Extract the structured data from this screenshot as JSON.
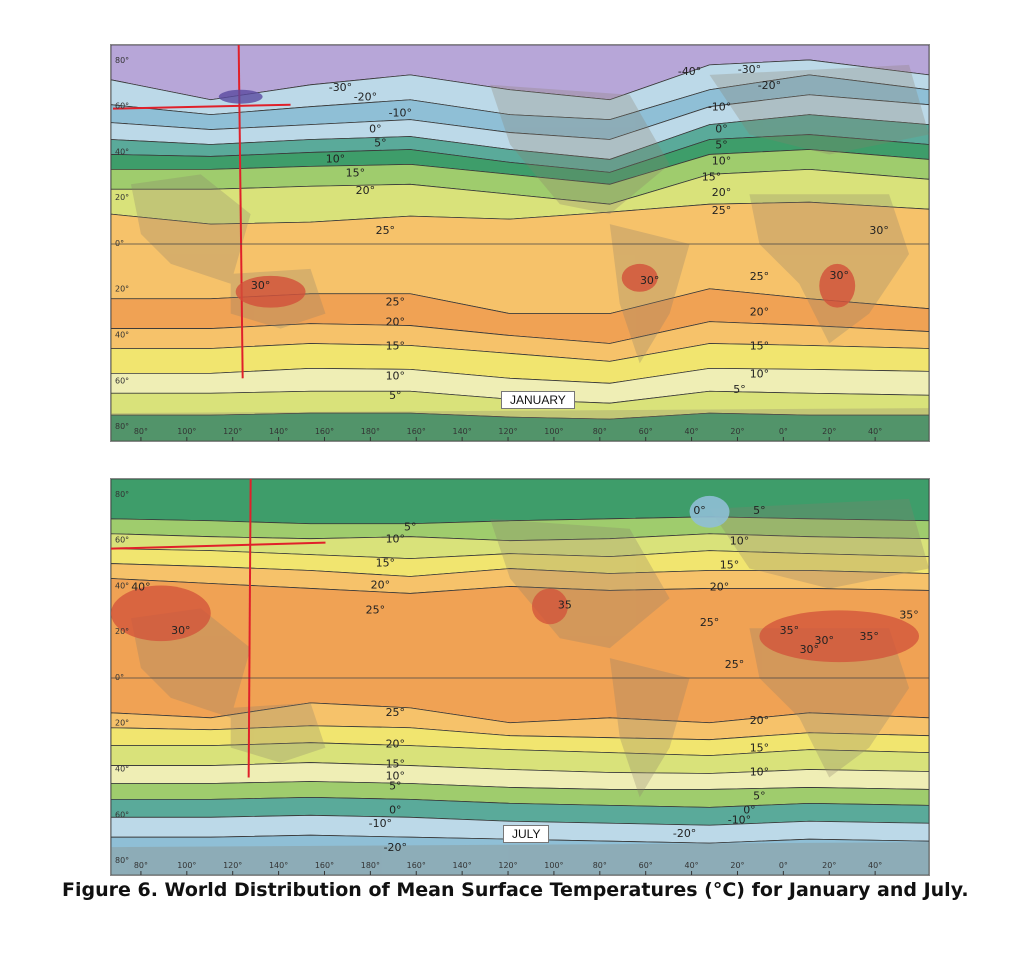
{
  "caption": "Figure 6. World Distribution of Mean Surface Temperatures (°C) for January and July.",
  "colors": {
    "purple": "#b7a6d8",
    "light_blue": "#bcd9e8",
    "blue": "#8fbfd6",
    "teal": "#5aaa9a",
    "green": "#3e9d6a",
    "light_green": "#9fcc6d",
    "yellow_green": "#d9e27a",
    "pale": "#efeeb5",
    "yellow": "#f1e56f",
    "light_orange": "#f6c26a",
    "orange": "#f0a254",
    "dark_orange": "#e88a45",
    "red": "#d2503a",
    "land_shade": "#8a7d6a",
    "annotation_red": "#e0202a"
  },
  "longitude_ticks": [
    "80°",
    "100°",
    "120°",
    "140°",
    "160°",
    "180°",
    "160°",
    "140°",
    "120°",
    "100°",
    "80°",
    "60°",
    "40°",
    "20°",
    "0°",
    "20°",
    "40°"
  ],
  "latitude_ticks": [
    "80°",
    "60°",
    "40°",
    "20°",
    "0°",
    "20°",
    "40°",
    "60°",
    "80°"
  ],
  "maps": [
    {
      "id": "january",
      "label": "JANUARY",
      "lat_labels": [
        "80°",
        "60°",
        "40°",
        "20°",
        "0°",
        "20°",
        "40°",
        "60°",
        "80°"
      ],
      "isotherm_labels": [
        "-30°",
        "-20°",
        "-10°",
        "0°",
        "5°",
        "10°",
        "15°",
        "20°",
        "25°",
        "30°",
        "-40°",
        "-30°",
        "-20°",
        "-10°",
        "0°",
        "5°",
        "10°",
        "15°",
        "20°",
        "25°",
        "30°",
        "30°",
        "30°",
        "25°",
        "20°",
        "15°",
        "10°",
        "5°",
        "25°",
        "20°",
        "15°",
        "10°",
        "5°"
      ]
    },
    {
      "id": "july",
      "label": "JULY",
      "lat_labels": [
        "80°",
        "60°",
        "40°",
        "20°",
        "0°",
        "20°",
        "40°",
        "60°",
        "80°"
      ],
      "isotherm_labels": [
        "5°",
        "10°",
        "15°",
        "20°",
        "25°",
        "40°",
        "30°",
        "0°",
        "5°",
        "10°",
        "15°",
        "20°",
        "25°",
        "30°",
        "35",
        "35°",
        "35°",
        "35°",
        "30°",
        "25°",
        "25°",
        "20°",
        "15°",
        "10°",
        "5°",
        "0°",
        "-10°",
        "-20°",
        "20°",
        "15°",
        "10°",
        "5°",
        "0°",
        "-10°",
        "-20°"
      ]
    }
  ]
}
